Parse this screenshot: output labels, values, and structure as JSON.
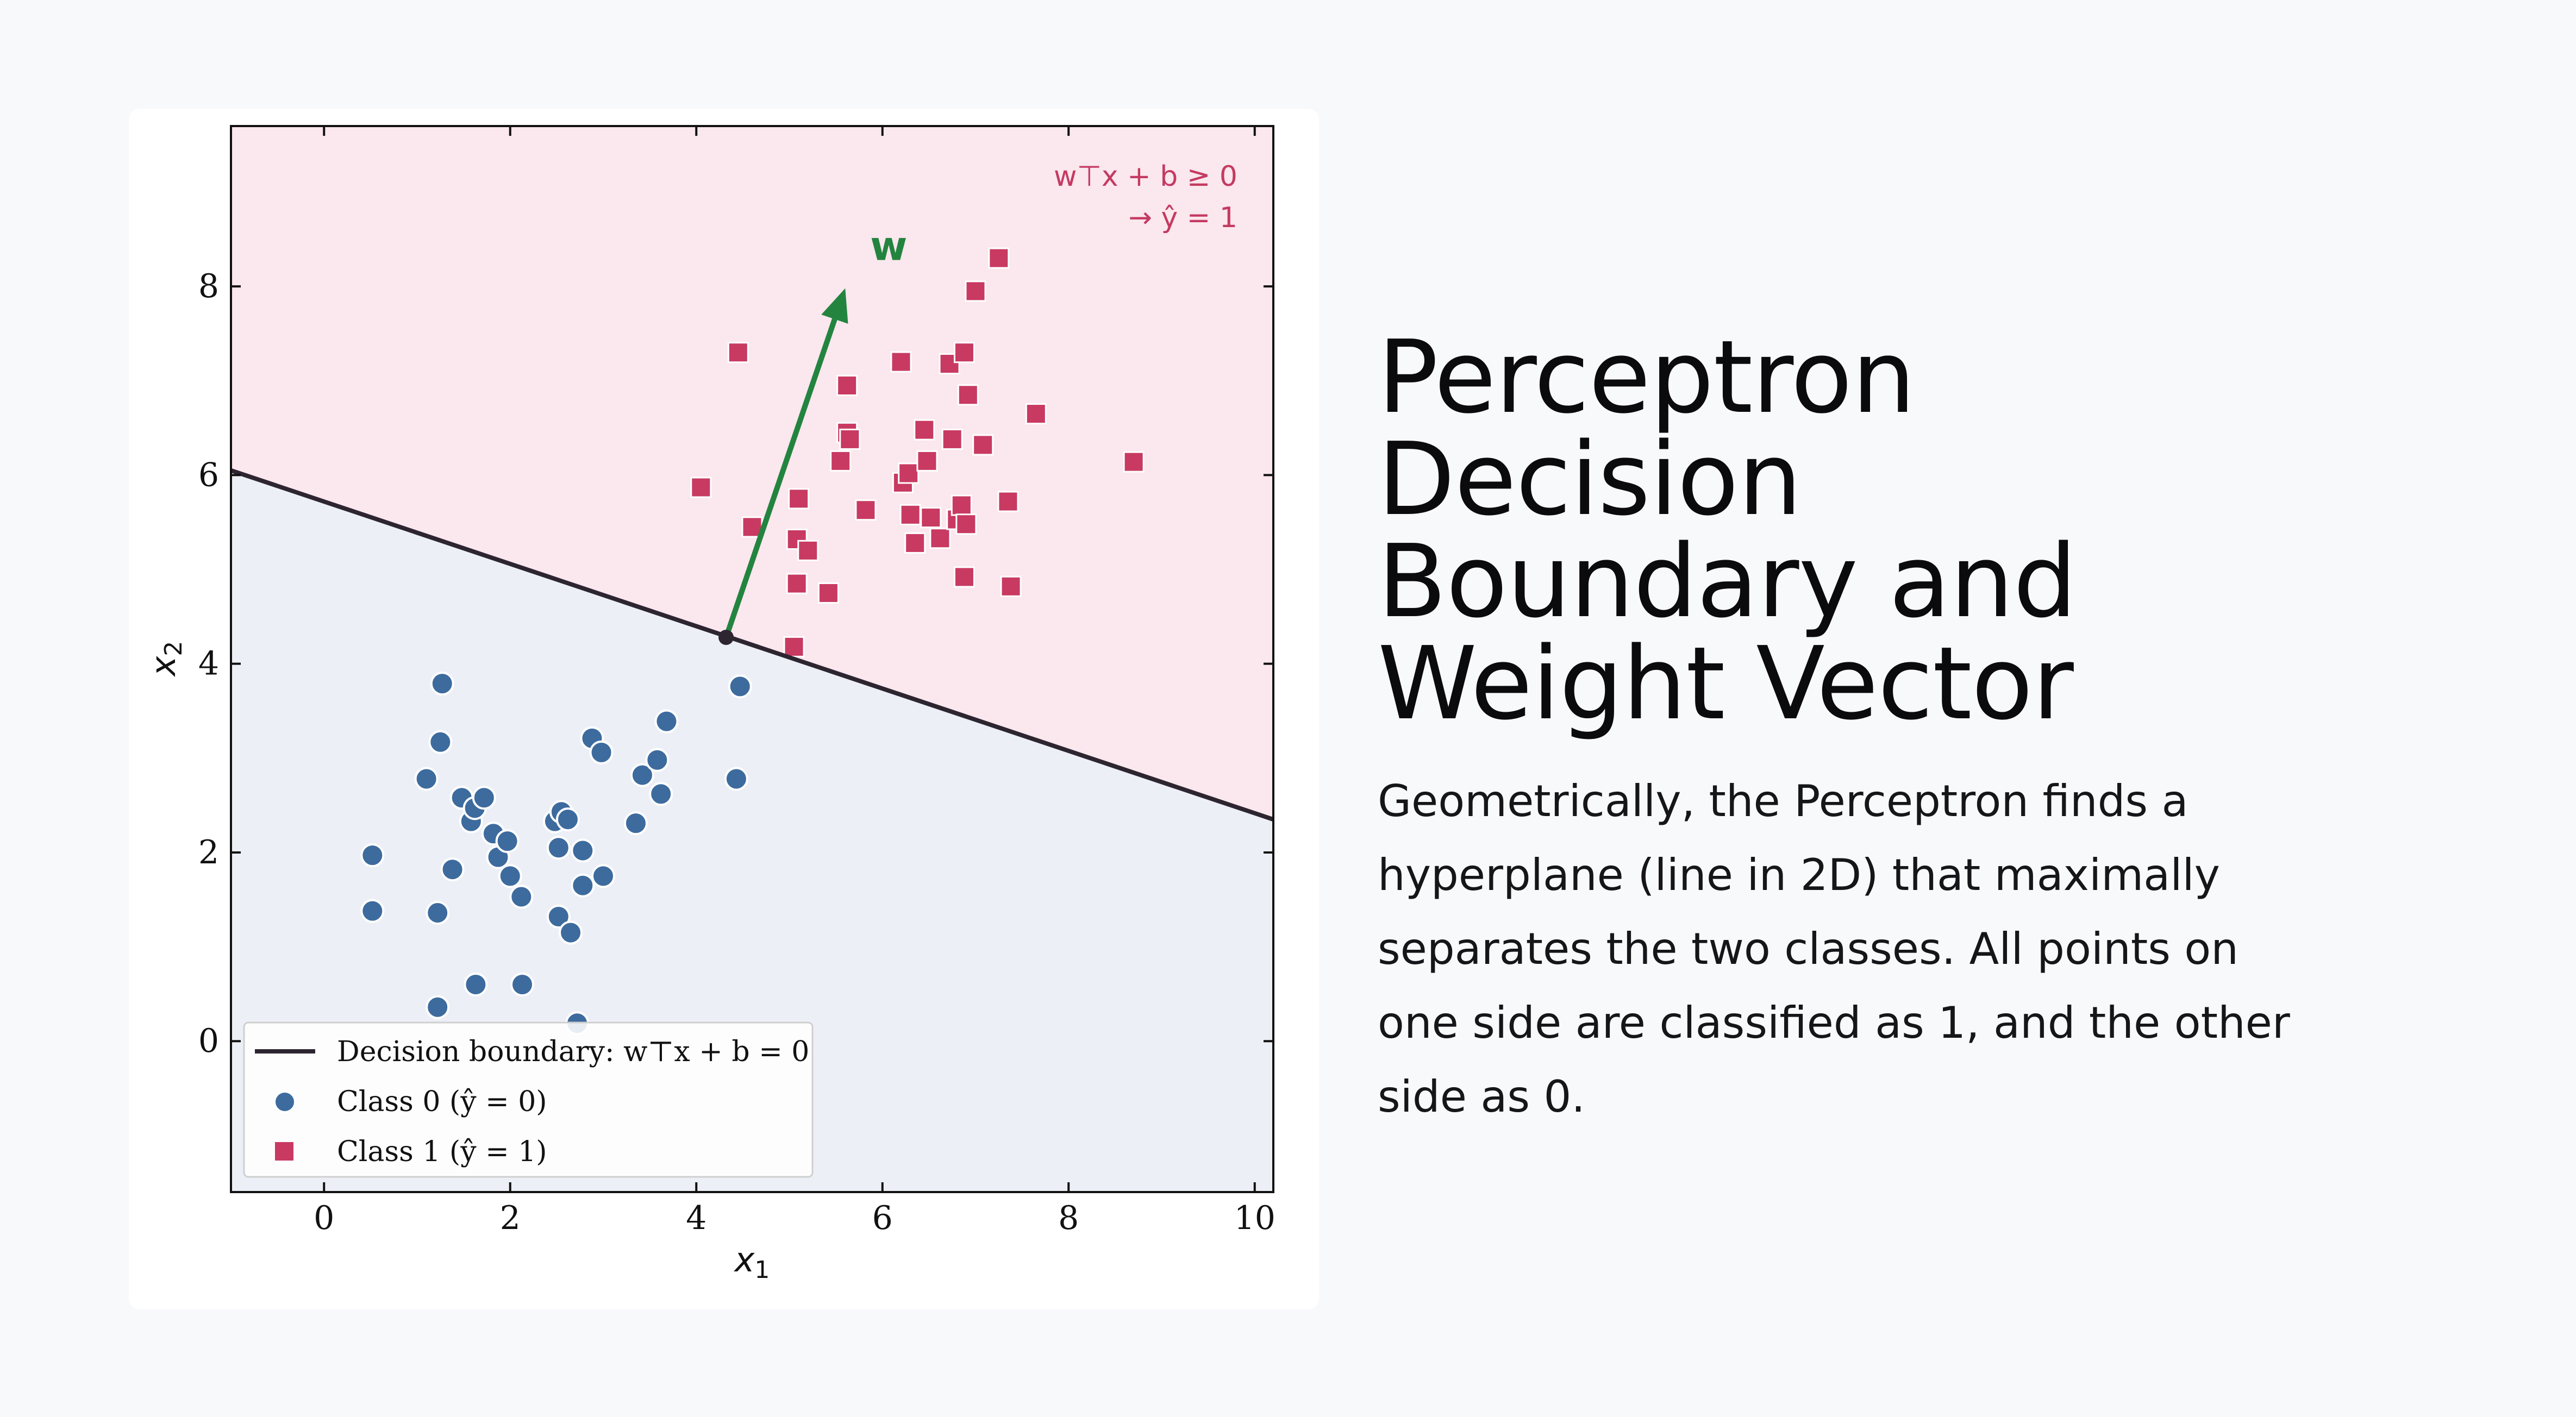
{
  "slide": {
    "title_lines": [
      "Perceptron",
      "Decision",
      "Boundary and",
      "Weight Vector"
    ],
    "body_lines": [
      "Geometrically, the Perceptron finds a",
      "hyperplane (line in 2D) that maximally",
      "separates the two classes. All points on",
      "one side are classified as 1, and the other",
      "side as 0."
    ]
  },
  "colors": {
    "class0": "#3d6b9e",
    "class1": "#c83a62",
    "region0": "#eceff6",
    "region1": "#fbe7ee",
    "boundary": "#2d2530",
    "weight_vector": "#23843f"
  },
  "chart_data": {
    "type": "scatter",
    "xlabel": "x",
    "xlabel_sub": "1",
    "ylabel": "x",
    "ylabel_sub": "2",
    "xlim": [
      -1,
      10.2
    ],
    "ylim": [
      -1.6,
      9.7
    ],
    "xticks": [
      0,
      2,
      4,
      6,
      8,
      10
    ],
    "yticks": [
      0,
      2,
      4,
      6,
      8
    ],
    "grid": false,
    "legend_position": "lower-left",
    "boundary": {
      "x": [
        -1,
        10.2
      ],
      "y": [
        6.05,
        2.35
      ]
    },
    "weight_vector": {
      "from": [
        4.32,
        4.28
      ],
      "to": [
        5.6,
        7.98
      ],
      "label": "w"
    },
    "region_annotation": [
      "w⊤x + b ≥ 0",
      "→ ŷ = 1"
    ],
    "legend": [
      {
        "kind": "line",
        "label": "Decision boundary: w⊤x + b = 0"
      },
      {
        "kind": "circle",
        "label": "Class 0 (ŷ = 0)"
      },
      {
        "kind": "square",
        "label": "Class 1 (ŷ = 1)"
      }
    ],
    "series": [
      {
        "name": "Class 0 (ŷ = 0)",
        "marker": "circle",
        "points": [
          [
            1.27,
            3.79
          ],
          [
            1.25,
            3.17
          ],
          [
            1.1,
            2.78
          ],
          [
            0.52,
            1.97
          ],
          [
            0.52,
            1.38
          ],
          [
            1.22,
            1.36
          ],
          [
            1.38,
            1.82
          ],
          [
            1.48,
            2.58
          ],
          [
            1.58,
            2.33
          ],
          [
            1.62,
            2.47
          ],
          [
            1.72,
            2.58
          ],
          [
            1.82,
            2.2
          ],
          [
            1.87,
            1.95
          ],
          [
            1.97,
            2.12
          ],
          [
            2.0,
            1.75
          ],
          [
            2.12,
            1.53
          ],
          [
            1.22,
            0.36
          ],
          [
            1.63,
            0.6
          ],
          [
            2.13,
            0.6
          ],
          [
            2.48,
            2.33
          ],
          [
            2.55,
            2.43
          ],
          [
            2.62,
            2.35
          ],
          [
            2.52,
            2.05
          ],
          [
            2.52,
            1.32
          ],
          [
            2.65,
            1.15
          ],
          [
            2.78,
            2.02
          ],
          [
            2.78,
            1.65
          ],
          [
            3.0,
            1.75
          ],
          [
            2.88,
            3.21
          ],
          [
            2.98,
            3.06
          ],
          [
            3.35,
            2.31
          ],
          [
            3.42,
            2.82
          ],
          [
            3.58,
            2.98
          ],
          [
            3.62,
            2.62
          ],
          [
            3.68,
            3.39
          ],
          [
            4.43,
            2.78
          ],
          [
            4.47,
            3.76
          ],
          [
            2.72,
            0.19
          ]
        ]
      },
      {
        "name": "Class 1 (ŷ = 1)",
        "marker": "square",
        "points": [
          [
            4.45,
            7.3
          ],
          [
            4.05,
            5.87
          ],
          [
            4.6,
            5.45
          ],
          [
            5.05,
            4.18
          ],
          [
            5.08,
            4.85
          ],
          [
            5.08,
            5.32
          ],
          [
            5.1,
            5.75
          ],
          [
            5.2,
            5.2
          ],
          [
            5.42,
            4.75
          ],
          [
            5.55,
            6.15
          ],
          [
            5.62,
            6.45
          ],
          [
            5.65,
            6.38
          ],
          [
            5.62,
            6.95
          ],
          [
            5.82,
            5.63
          ],
          [
            6.2,
            7.2
          ],
          [
            6.22,
            5.92
          ],
          [
            6.28,
            6.02
          ],
          [
            6.3,
            5.58
          ],
          [
            6.35,
            5.28
          ],
          [
            6.45,
            6.48
          ],
          [
            6.48,
            6.15
          ],
          [
            6.52,
            5.55
          ],
          [
            6.62,
            5.33
          ],
          [
            6.72,
            7.18
          ],
          [
            6.75,
            6.38
          ],
          [
            6.8,
            5.53
          ],
          [
            6.85,
            5.68
          ],
          [
            6.88,
            7.3
          ],
          [
            6.9,
            5.48
          ],
          [
            6.88,
            4.92
          ],
          [
            6.92,
            6.85
          ],
          [
            7.0,
            7.95
          ],
          [
            7.08,
            6.32
          ],
          [
            7.25,
            8.3
          ],
          [
            7.35,
            5.72
          ],
          [
            7.38,
            4.82
          ],
          [
            7.65,
            6.65
          ],
          [
            8.7,
            6.14
          ]
        ]
      }
    ]
  }
}
